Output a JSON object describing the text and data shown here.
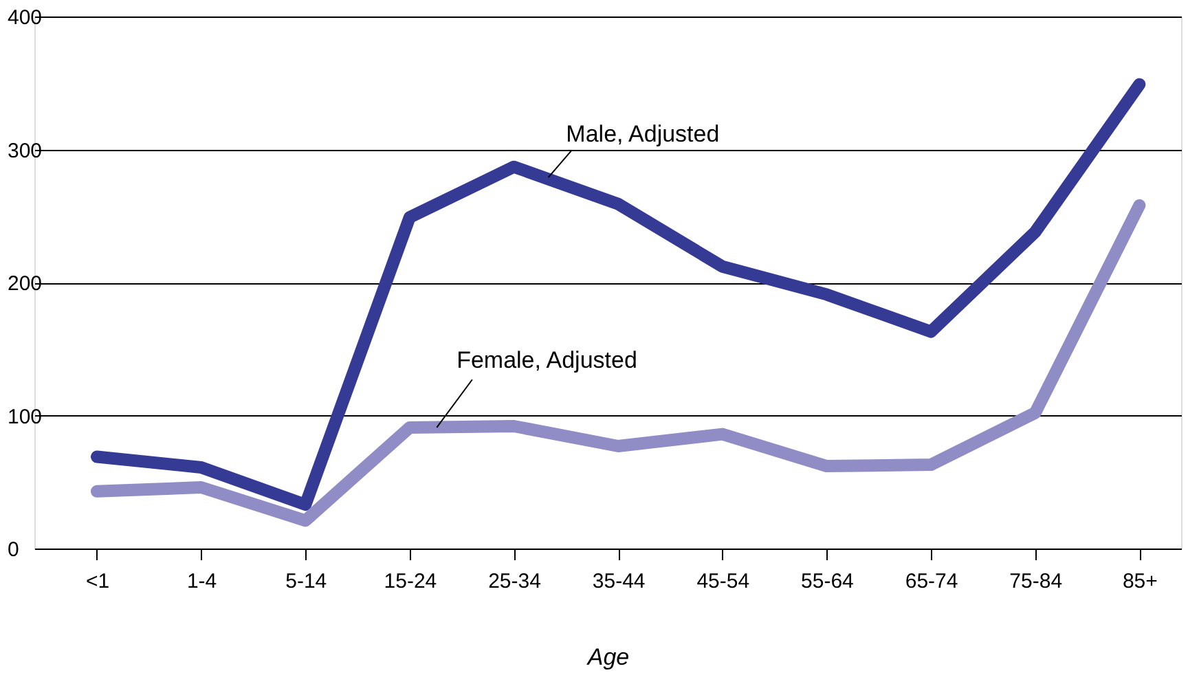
{
  "chart_data": {
    "type": "line",
    "xlabel": "Age",
    "categories": [
      "<1",
      "1-4",
      "5-14",
      "15-24",
      "25-34",
      "35-44",
      "45-54",
      "55-64",
      "65-74",
      "75-84",
      "85+"
    ],
    "series": [
      {
        "name": "Male, Adjusted",
        "color": "#353a94",
        "values": [
          69,
          61,
          33,
          249,
          287,
          259,
          212,
          191,
          163,
          238,
          349
        ]
      },
      {
        "name": "Female, Adjusted",
        "color": "#8f8cc6",
        "values": [
          43,
          46,
          21,
          91,
          92,
          77,
          86,
          62,
          63,
          102,
          258
        ]
      }
    ],
    "ylim": [
      0,
      400
    ],
    "yticks": [
      0,
      100,
      200,
      300,
      400
    ],
    "grid": "y",
    "line_style": "solid"
  }
}
